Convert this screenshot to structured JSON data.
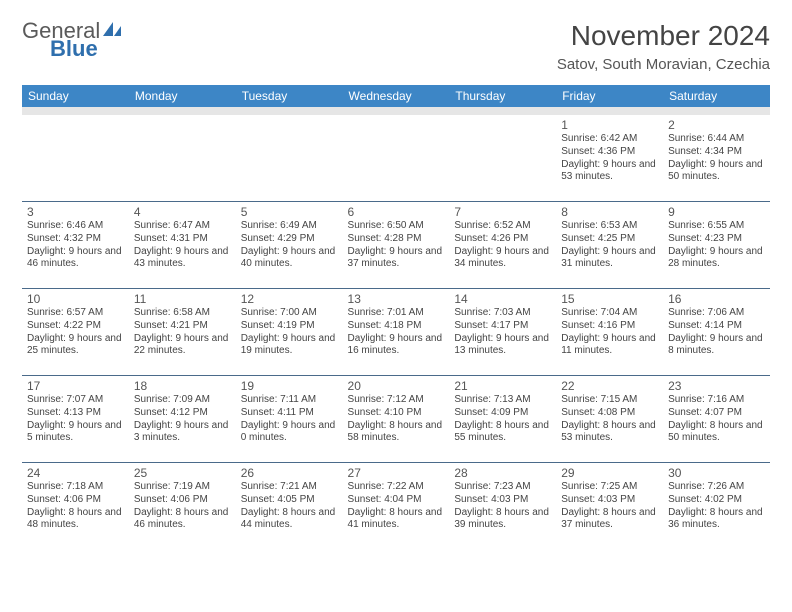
{
  "logo": {
    "textA": "General",
    "textB": "Blue"
  },
  "title": "November 2024",
  "location": "Satov, South Moravian, Czechia",
  "colors": {
    "header_bg": "#3d86c6",
    "header_text": "#ffffff",
    "border": "#4a6a8a",
    "subheader_bg": "#e6e6e6",
    "day_num": "#555555",
    "body_text": "#444444"
  },
  "day_names": [
    "Sunday",
    "Monday",
    "Tuesday",
    "Wednesday",
    "Thursday",
    "Friday",
    "Saturday"
  ],
  "weeks": [
    [
      null,
      null,
      null,
      null,
      null,
      {
        "n": "1",
        "rise": "6:42 AM",
        "set": "4:36 PM",
        "dl": "9 hours and 53 minutes."
      },
      {
        "n": "2",
        "rise": "6:44 AM",
        "set": "4:34 PM",
        "dl": "9 hours and 50 minutes."
      }
    ],
    [
      {
        "n": "3",
        "rise": "6:46 AM",
        "set": "4:32 PM",
        "dl": "9 hours and 46 minutes."
      },
      {
        "n": "4",
        "rise": "6:47 AM",
        "set": "4:31 PM",
        "dl": "9 hours and 43 minutes."
      },
      {
        "n": "5",
        "rise": "6:49 AM",
        "set": "4:29 PM",
        "dl": "9 hours and 40 minutes."
      },
      {
        "n": "6",
        "rise": "6:50 AM",
        "set": "4:28 PM",
        "dl": "9 hours and 37 minutes."
      },
      {
        "n": "7",
        "rise": "6:52 AM",
        "set": "4:26 PM",
        "dl": "9 hours and 34 minutes."
      },
      {
        "n": "8",
        "rise": "6:53 AM",
        "set": "4:25 PM",
        "dl": "9 hours and 31 minutes."
      },
      {
        "n": "9",
        "rise": "6:55 AM",
        "set": "4:23 PM",
        "dl": "9 hours and 28 minutes."
      }
    ],
    [
      {
        "n": "10",
        "rise": "6:57 AM",
        "set": "4:22 PM",
        "dl": "9 hours and 25 minutes."
      },
      {
        "n": "11",
        "rise": "6:58 AM",
        "set": "4:21 PM",
        "dl": "9 hours and 22 minutes."
      },
      {
        "n": "12",
        "rise": "7:00 AM",
        "set": "4:19 PM",
        "dl": "9 hours and 19 minutes."
      },
      {
        "n": "13",
        "rise": "7:01 AM",
        "set": "4:18 PM",
        "dl": "9 hours and 16 minutes."
      },
      {
        "n": "14",
        "rise": "7:03 AM",
        "set": "4:17 PM",
        "dl": "9 hours and 13 minutes."
      },
      {
        "n": "15",
        "rise": "7:04 AM",
        "set": "4:16 PM",
        "dl": "9 hours and 11 minutes."
      },
      {
        "n": "16",
        "rise": "7:06 AM",
        "set": "4:14 PM",
        "dl": "9 hours and 8 minutes."
      }
    ],
    [
      {
        "n": "17",
        "rise": "7:07 AM",
        "set": "4:13 PM",
        "dl": "9 hours and 5 minutes."
      },
      {
        "n": "18",
        "rise": "7:09 AM",
        "set": "4:12 PM",
        "dl": "9 hours and 3 minutes."
      },
      {
        "n": "19",
        "rise": "7:11 AM",
        "set": "4:11 PM",
        "dl": "9 hours and 0 minutes."
      },
      {
        "n": "20",
        "rise": "7:12 AM",
        "set": "4:10 PM",
        "dl": "8 hours and 58 minutes."
      },
      {
        "n": "21",
        "rise": "7:13 AM",
        "set": "4:09 PM",
        "dl": "8 hours and 55 minutes."
      },
      {
        "n": "22",
        "rise": "7:15 AM",
        "set": "4:08 PM",
        "dl": "8 hours and 53 minutes."
      },
      {
        "n": "23",
        "rise": "7:16 AM",
        "set": "4:07 PM",
        "dl": "8 hours and 50 minutes."
      }
    ],
    [
      {
        "n": "24",
        "rise": "7:18 AM",
        "set": "4:06 PM",
        "dl": "8 hours and 48 minutes."
      },
      {
        "n": "25",
        "rise": "7:19 AM",
        "set": "4:06 PM",
        "dl": "8 hours and 46 minutes."
      },
      {
        "n": "26",
        "rise": "7:21 AM",
        "set": "4:05 PM",
        "dl": "8 hours and 44 minutes."
      },
      {
        "n": "27",
        "rise": "7:22 AM",
        "set": "4:04 PM",
        "dl": "8 hours and 41 minutes."
      },
      {
        "n": "28",
        "rise": "7:23 AM",
        "set": "4:03 PM",
        "dl": "8 hours and 39 minutes."
      },
      {
        "n": "29",
        "rise": "7:25 AM",
        "set": "4:03 PM",
        "dl": "8 hours and 37 minutes."
      },
      {
        "n": "30",
        "rise": "7:26 AM",
        "set": "4:02 PM",
        "dl": "8 hours and 36 minutes."
      }
    ]
  ]
}
